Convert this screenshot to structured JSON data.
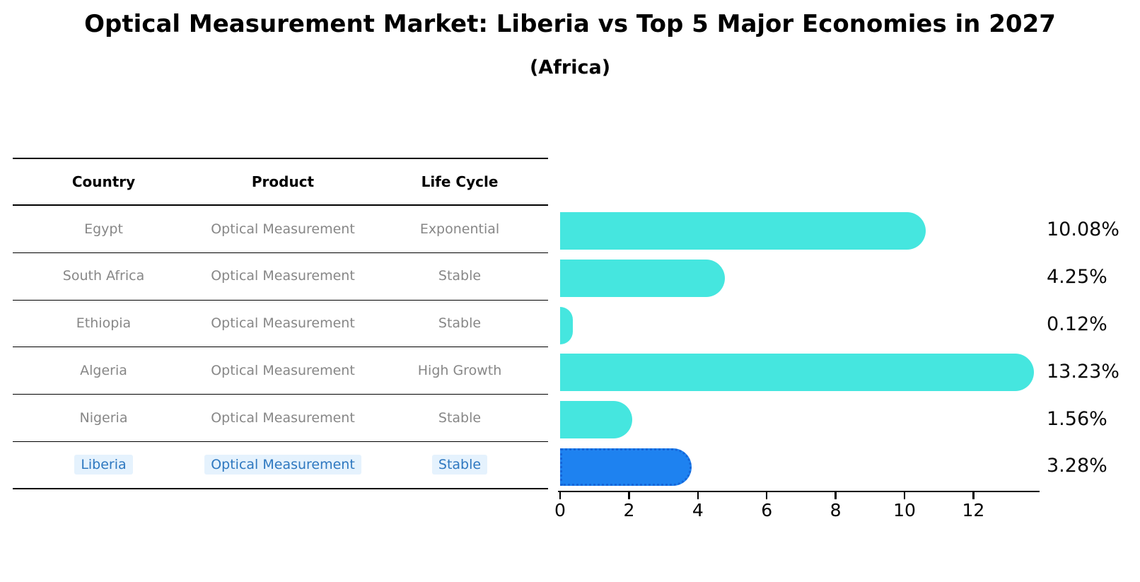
{
  "header": {
    "title": "Optical Measurement Market: Liberia vs Top 5 Major Economies in 2027",
    "subtitle": "(Africa)"
  },
  "table": {
    "headers": [
      "Country",
      "Product",
      "Life Cycle"
    ],
    "rows": [
      {
        "country": "Egypt",
        "product": "Optical Measurement",
        "life_cycle": "Exponential",
        "share": "10.08%",
        "highlight": false
      },
      {
        "country": "South Africa",
        "product": "Optical Measurement",
        "life_cycle": "Stable",
        "share": "4.25%",
        "highlight": false
      },
      {
        "country": "Ethiopia",
        "product": "Optical Measurement",
        "life_cycle": "Stable",
        "share": "0.12%",
        "highlight": false
      },
      {
        "country": "Algeria",
        "product": "Optical Measurement",
        "life_cycle": "High Growth",
        "share": "13.23%",
        "highlight": false
      },
      {
        "country": "Nigeria",
        "product": "Optical Measurement",
        "life_cycle": "Stable",
        "share": "1.56%",
        "highlight": false
      },
      {
        "country": "Liberia",
        "product": "Optical Measurement",
        "life_cycle": "Stable",
        "share": "3.28%",
        "highlight": true
      }
    ]
  },
  "chart_data": {
    "type": "bar",
    "orientation": "horizontal",
    "title": "Optical Measurement Market: Liberia vs Top 5 Major Economies in 2027",
    "subtitle": "(Africa)",
    "categories": [
      "Egypt",
      "South Africa",
      "Ethiopia",
      "Algeria",
      "Nigeria",
      "Liberia"
    ],
    "values": [
      10.08,
      4.25,
      0.12,
      13.23,
      1.56,
      3.28
    ],
    "value_labels": [
      "10.08%",
      "4.25%",
      "0.12%",
      "13.23%",
      "1.56%",
      "3.28%"
    ],
    "highlight_index": 5,
    "xlabel": "",
    "ylabel": "",
    "xlim": [
      0,
      13.9
    ],
    "x_ticks": [
      "0",
      "2",
      "4",
      "6",
      "8",
      "10",
      "12"
    ],
    "grid": false,
    "legend": false
  },
  "colors": {
    "bar": "#45e6df",
    "highlight_bar": "#1e82f0",
    "highlight_border": "#1565d8",
    "table_text": "#878787",
    "highlight_text": "#2e78c0",
    "axis": "#000000"
  }
}
